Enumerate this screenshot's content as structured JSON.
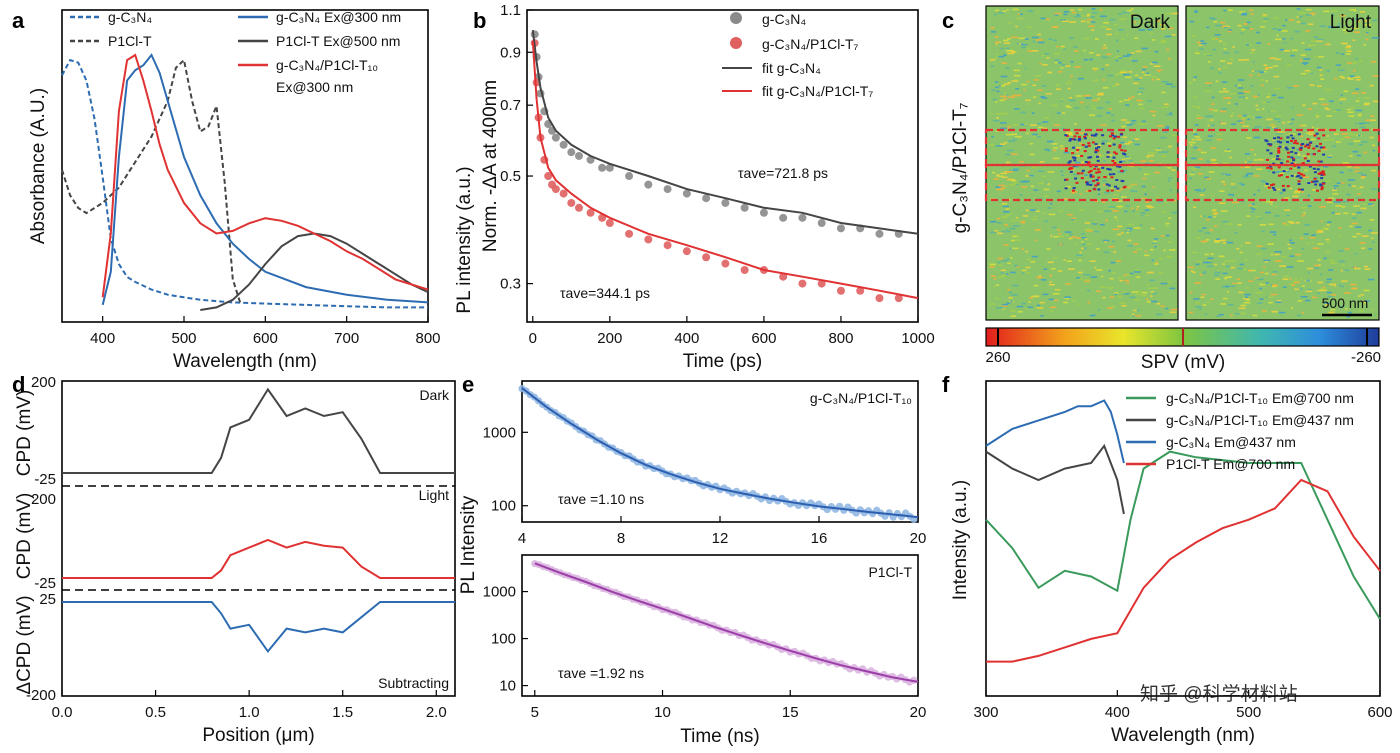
{
  "chart_data": [
    {
      "panel": "a",
      "type": "line",
      "xlabel": "Wavelength (nm)",
      "ylabel": "Absorbance (A.U.)",
      "xlim": [
        350,
        800
      ],
      "xticks": [
        "400",
        "500",
        "600",
        "700",
        "800"
      ],
      "colors": {
        "blue": "#2d6cb2",
        "gray": "#454545",
        "red": "#e03232"
      },
      "legend": [
        "g-C₃N₄",
        "P1Cl-T",
        "g-C₃N₄ Ex@300 nm",
        "P1Cl-T Ex@500 nm",
        "g-C₃N₄/P1Cl-T₁₀",
        "Ex@300 nm"
      ],
      "series": [
        {
          "name": "g-C₃N₄",
          "style": "dashed",
          "color": "#2d6cb2",
          "x": [
            350,
            360,
            370,
            380,
            390,
            400,
            410,
            420,
            430,
            440,
            460,
            480,
            500,
            520,
            540,
            560,
            600,
            650,
            700,
            750,
            800
          ],
          "y": [
            0.92,
            0.98,
            0.97,
            0.9,
            0.75,
            0.52,
            0.28,
            0.18,
            0.13,
            0.11,
            0.08,
            0.06,
            0.05,
            0.04,
            0.035,
            0.03,
            0.025,
            0.02,
            0.015,
            0.01,
            0.01
          ]
        },
        {
          "name": "P1Cl-T",
          "style": "dashed",
          "color": "#454545",
          "x": [
            350,
            360,
            370,
            380,
            390,
            400,
            420,
            440,
            460,
            480,
            490,
            500,
            510,
            520,
            530,
            540,
            550,
            560,
            570
          ],
          "y": [
            0.55,
            0.45,
            0.4,
            0.38,
            0.4,
            0.42,
            0.48,
            0.58,
            0.68,
            0.82,
            0.95,
            0.98,
            0.82,
            0.7,
            0.72,
            0.8,
            0.5,
            0.12,
            0.02
          ]
        },
        {
          "name": "g-C₃N₄ Ex@300 nm",
          "color": "#2d6cb2",
          "x": [
            400,
            410,
            420,
            430,
            440,
            450,
            460,
            470,
            480,
            500,
            520,
            540,
            560,
            580,
            600,
            650,
            700,
            750,
            800
          ],
          "y": [
            0.02,
            0.15,
            0.6,
            0.9,
            0.94,
            0.96,
            1.0,
            0.93,
            0.82,
            0.6,
            0.45,
            0.34,
            0.26,
            0.2,
            0.15,
            0.09,
            0.06,
            0.04,
            0.03
          ]
        },
        {
          "name": "P1Cl-T Ex@500 nm",
          "color": "#454545",
          "x": [
            520,
            540,
            560,
            580,
            600,
            620,
            640,
            660,
            680,
            700,
            720,
            740,
            760,
            780,
            800
          ],
          "y": [
            0.0,
            0.01,
            0.04,
            0.1,
            0.18,
            0.25,
            0.29,
            0.3,
            0.29,
            0.26,
            0.22,
            0.18,
            0.14,
            0.1,
            0.07
          ]
        },
        {
          "name": "g-C₃N₄/P1Cl-T₁₀ Ex@300 nm",
          "color": "#e03232",
          "x": [
            400,
            410,
            420,
            430,
            440,
            450,
            460,
            470,
            480,
            500,
            520,
            540,
            560,
            580,
            600,
            620,
            640,
            660,
            680,
            700,
            720,
            740,
            760,
            780,
            800
          ],
          "y": [
            0.05,
            0.3,
            0.78,
            0.98,
            1.0,
            0.9,
            0.78,
            0.65,
            0.55,
            0.42,
            0.34,
            0.3,
            0.31,
            0.34,
            0.36,
            0.35,
            0.33,
            0.3,
            0.27,
            0.23,
            0.2,
            0.16,
            0.12,
            0.1,
            0.08
          ]
        }
      ]
    },
    {
      "panel": "b",
      "type": "scatter",
      "xlabel": "Time (ps)",
      "ylabel": "Norm. -ΔA at 400nm",
      "xlim": [
        0,
        1000
      ],
      "ylim": [
        0.25,
        1.1
      ],
      "yscale": "log",
      "xticks": [
        "0",
        "200",
        "400",
        "600",
        "800",
        "1000"
      ],
      "yticks": [
        {
          "v": 0.3,
          "label": "0.3"
        },
        {
          "v": 0.5,
          "label": "0.5"
        },
        {
          "v": 0.7,
          "label": "0.7"
        },
        {
          "v": 0.9,
          "label": "0.9"
        },
        {
          "v": 1.1,
          "label": "1.1"
        }
      ],
      "legend": [
        "g-C₃N₄",
        "g-C₃N₄/P1Cl-T₇",
        "fit g-C₃N₄",
        "fit g-C₃N₄/P1Cl-T₇"
      ],
      "annotations": [
        "τave=721.8 ps",
        "τave=344.1 ps"
      ],
      "series": [
        {
          "name": "g-C₃N₄",
          "color": "#8a8a8a",
          "scatter": true,
          "x": [
            5,
            10,
            15,
            20,
            30,
            40,
            50,
            60,
            80,
            100,
            120,
            150,
            180,
            200,
            250,
            300,
            350,
            400,
            450,
            500,
            550,
            600,
            650,
            700,
            750,
            800,
            850,
            900,
            950
          ],
          "y": [
            0.98,
            0.88,
            0.8,
            0.74,
            0.68,
            0.64,
            0.62,
            0.6,
            0.58,
            0.56,
            0.55,
            0.54,
            0.52,
            0.52,
            0.5,
            0.48,
            0.47,
            0.46,
            0.45,
            0.44,
            0.43,
            0.42,
            0.41,
            0.41,
            0.4,
            0.39,
            0.39,
            0.38,
            0.38
          ]
        },
        {
          "name": "g-C₃N₄/P1Cl-T₇",
          "color": "#e06060",
          "scatter": true,
          "x": [
            5,
            10,
            15,
            20,
            30,
            40,
            50,
            60,
            80,
            100,
            120,
            150,
            180,
            200,
            250,
            300,
            350,
            400,
            450,
            500,
            550,
            600,
            650,
            700,
            750,
            800,
            850,
            900,
            950
          ],
          "y": [
            0.94,
            0.78,
            0.66,
            0.6,
            0.54,
            0.5,
            0.48,
            0.47,
            0.46,
            0.44,
            0.43,
            0.42,
            0.41,
            0.4,
            0.38,
            0.37,
            0.36,
            0.35,
            0.34,
            0.33,
            0.32,
            0.32,
            0.31,
            0.3,
            0.3,
            0.29,
            0.29,
            0.28,
            0.28
          ]
        },
        {
          "name": "fit g-C₃N₄",
          "color": "#454545",
          "x": [
            0,
            10,
            20,
            40,
            60,
            100,
            150,
            200,
            300,
            400,
            500,
            600,
            700,
            800,
            900,
            1000
          ],
          "y": [
            1.0,
            0.86,
            0.76,
            0.66,
            0.62,
            0.58,
            0.55,
            0.53,
            0.5,
            0.47,
            0.45,
            0.43,
            0.42,
            0.4,
            0.39,
            0.38
          ]
        },
        {
          "name": "fit g-C₃N₄/P1Cl-T₇",
          "color": "#e03232",
          "x": [
            0,
            10,
            20,
            40,
            60,
            100,
            150,
            200,
            300,
            400,
            500,
            600,
            700,
            800,
            900,
            1000
          ],
          "y": [
            0.95,
            0.72,
            0.6,
            0.52,
            0.49,
            0.46,
            0.43,
            0.41,
            0.38,
            0.36,
            0.34,
            0.32,
            0.31,
            0.3,
            0.29,
            0.28
          ]
        }
      ]
    },
    {
      "panel": "c",
      "type": "heatmap",
      "ylabel": "g-C₃N₄/P1Cl-T₇",
      "panels": [
        "Dark",
        "Light"
      ],
      "scalebar": "500 nm",
      "colorbar_label": "SPV (mV)",
      "colorbar_range": [
        "260",
        "-260"
      ]
    },
    {
      "panel": "d",
      "type": "line",
      "xlabel": "Position (μm)",
      "xlim": [
        0,
        2.1
      ],
      "xticks": [
        "0.0",
        "0.5",
        "1.0",
        "1.5",
        "2.0"
      ],
      "subplots": [
        {
          "title": "Dark",
          "ylabel": "CPD (mV)",
          "yticks": [
            "200",
            "-25"
          ],
          "color": "#454545",
          "x": [
            0,
            0.2,
            0.4,
            0.6,
            0.8,
            0.85,
            0.9,
            1.0,
            1.1,
            1.2,
            1.3,
            1.4,
            1.5,
            1.6,
            1.7,
            1.8,
            2.0,
            2.1
          ],
          "y": [
            0,
            0,
            0,
            0,
            0,
            40,
            120,
            140,
            220,
            150,
            170,
            150,
            160,
            90,
            0,
            0,
            0,
            0
          ]
        },
        {
          "title": "Light",
          "ylabel": "CPD (mV)",
          "yticks": [
            "200",
            "-25"
          ],
          "color": "#e03232",
          "x": [
            0,
            0.2,
            0.4,
            0.6,
            0.8,
            0.85,
            0.9,
            1.0,
            1.1,
            1.2,
            1.3,
            1.4,
            1.5,
            1.6,
            1.7,
            1.8,
            2.0,
            2.1
          ],
          "y": [
            0,
            0,
            0,
            0,
            0,
            20,
            60,
            80,
            100,
            80,
            95,
            85,
            80,
            30,
            0,
            0,
            0,
            0
          ]
        },
        {
          "title": "Subtracting",
          "ylabel": "ΔCPD (mV)",
          "yticks": [
            "25",
            "-200"
          ],
          "color": "#2d6cb2",
          "x": [
            0,
            0.2,
            0.4,
            0.6,
            0.8,
            0.85,
            0.9,
            1.0,
            1.1,
            1.2,
            1.3,
            1.4,
            1.5,
            1.6,
            1.7,
            1.8,
            2.0,
            2.1
          ],
          "y": [
            0,
            0,
            0,
            0,
            0,
            -30,
            -70,
            -60,
            -130,
            -70,
            -80,
            -70,
            -80,
            -40,
            0,
            0,
            0,
            0
          ]
        }
      ]
    },
    {
      "panel": "e",
      "type": "scatter",
      "ylabel": "PL Intensity",
      "xlabel": "Time (ns)",
      "subplots": [
        {
          "title": "g-C₃N₄/P1Cl-T₁₀",
          "annotation": "τave =1.10 ns",
          "color": "#2d5fb0",
          "dotcolor": "#8cb4e2",
          "xlim": [
            4,
            20
          ],
          "xticks": [
            "4",
            "8",
            "12",
            "16",
            "20"
          ],
          "yscale": "log",
          "yticks": [
            "100",
            "1000"
          ],
          "x": [
            4,
            5,
            6,
            7,
            8,
            9,
            10,
            11,
            12,
            13,
            14,
            15,
            16,
            17,
            18,
            19,
            20
          ],
          "y": [
            4000,
            2200,
            1300,
            800,
            520,
            360,
            270,
            210,
            170,
            145,
            125,
            110,
            98,
            90,
            82,
            76,
            70
          ]
        },
        {
          "title": "P1Cl-T",
          "annotation": "τave =1.92 ns",
          "color": "#9c3ea8",
          "dotcolor": "#d8b0de",
          "xlim": [
            4.5,
            20
          ],
          "xticks": [
            "5",
            "10",
            "15",
            "20"
          ],
          "yscale": "log",
          "yticks": [
            "10",
            "100",
            "1000"
          ],
          "x": [
            5,
            6,
            7,
            8,
            9,
            10,
            11,
            12,
            13,
            14,
            15,
            16,
            17,
            18,
            19,
            20
          ],
          "y": [
            4000,
            2500,
            1600,
            1000,
            650,
            430,
            280,
            180,
            120,
            80,
            55,
            38,
            27,
            20,
            15,
            12
          ]
        }
      ]
    },
    {
      "panel": "f",
      "type": "line",
      "xlabel": "Wavelength (nm)",
      "ylabel": "Intensity (a.u.)",
      "xlim": [
        300,
        600
      ],
      "xticks": [
        "300",
        "400",
        "500",
        "600"
      ],
      "legend": [
        "g-C₃N₄/P1Cl-T₁₀ Em@700 nm",
        "g-C₃N₄/P1Cl-T₁₀ Em@437 nm",
        "g-C₃N₄ Em@437 nm",
        "P1Cl-T Em@700 nm"
      ],
      "watermark": "知乎 @科学材料站",
      "series": [
        {
          "name": "g-C₃N₄/P1Cl-T₁₀ Em@700 nm",
          "color": "#3a9a5c",
          "x": [
            300,
            320,
            340,
            360,
            380,
            400,
            410,
            420,
            440,
            460,
            480,
            500,
            520,
            540,
            560,
            580,
            600
          ],
          "y": [
            0.6,
            0.5,
            0.36,
            0.42,
            0.4,
            0.35,
            0.6,
            0.78,
            0.84,
            0.82,
            0.81,
            0.8,
            0.8,
            0.8,
            0.6,
            0.4,
            0.25
          ]
        },
        {
          "name": "g-C₃N₄/P1Cl-T₁₀ Em@437 nm",
          "color": "#454545",
          "x": [
            300,
            320,
            340,
            360,
            380,
            390,
            400,
            405
          ],
          "y": [
            0.84,
            0.78,
            0.74,
            0.78,
            0.8,
            0.86,
            0.74,
            0.62
          ]
        },
        {
          "name": "g-C₃N₄ Em@437 nm",
          "color": "#2d6cb2",
          "x": [
            300,
            320,
            340,
            360,
            370,
            380,
            390,
            395,
            400,
            405
          ],
          "y": [
            0.86,
            0.92,
            0.95,
            0.98,
            1.0,
            1.0,
            1.02,
            0.98,
            0.9,
            0.8
          ]
        },
        {
          "name": "P1Cl-T Em@700 nm",
          "color": "#e03232",
          "x": [
            300,
            320,
            340,
            360,
            380,
            400,
            420,
            440,
            460,
            480,
            500,
            520,
            540,
            560,
            580,
            600
          ],
          "y": [
            0.1,
            0.1,
            0.12,
            0.15,
            0.18,
            0.2,
            0.36,
            0.46,
            0.52,
            0.57,
            0.6,
            0.64,
            0.74,
            0.7,
            0.54,
            0.42
          ]
        }
      ]
    }
  ]
}
